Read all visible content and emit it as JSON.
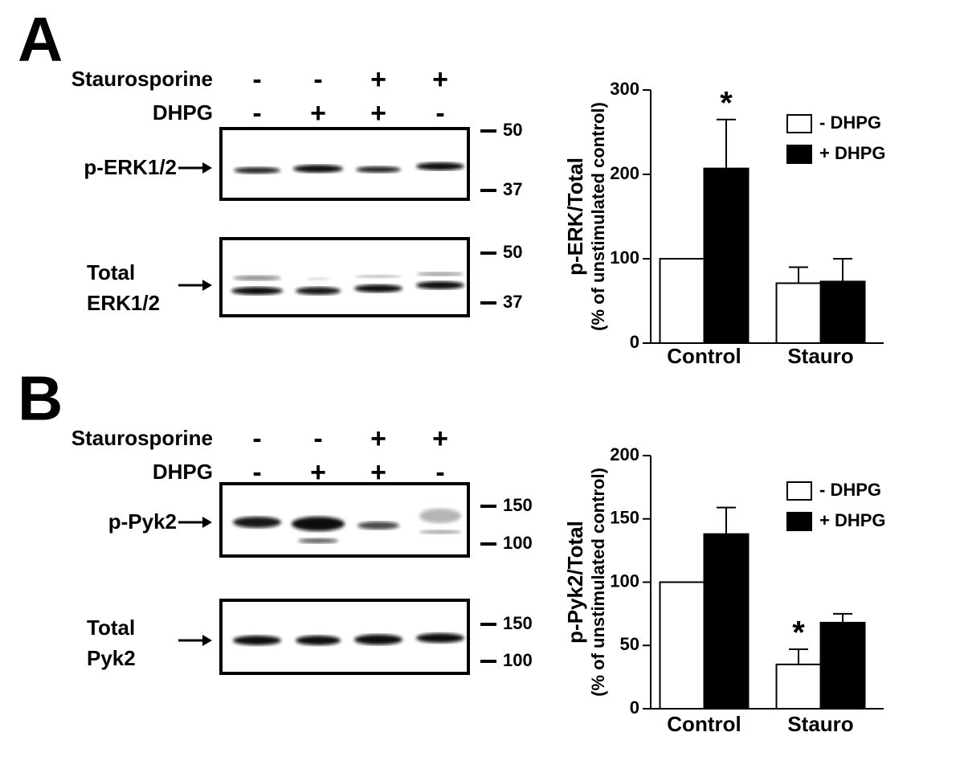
{
  "panels": [
    {
      "label": "A",
      "treatments": [
        {
          "name": "Staurosporine",
          "signs": [
            "-",
            "-",
            "+",
            "+"
          ]
        },
        {
          "name": "DHPG",
          "signs": [
            "-",
            "+",
            "+",
            "-"
          ]
        }
      ],
      "blots": [
        {
          "label": [
            "p-ERK1/2"
          ],
          "markers": [
            "50",
            "37"
          ]
        },
        {
          "label": [
            "Total",
            "ERK1/2"
          ],
          "markers": [
            "50",
            "37"
          ]
        }
      ]
    },
    {
      "label": "B",
      "treatments": [
        {
          "name": "Staurosporine",
          "signs": [
            "-",
            "-",
            "+",
            "+"
          ]
        },
        {
          "name": "DHPG",
          "signs": [
            "-",
            "+",
            "+",
            "-"
          ]
        }
      ],
      "blots": [
        {
          "label": [
            "p-Pyk2"
          ],
          "markers": [
            "150",
            "100"
          ]
        },
        {
          "label": [
            "Total",
            "Pyk2"
          ],
          "markers": [
            "150",
            "100"
          ]
        }
      ]
    }
  ],
  "chart_data": [
    {
      "type": "bar",
      "ylabel": [
        "p-ERK/Total",
        "(% of unstimulated control)"
      ],
      "categories": [
        "Control",
        "Stauro"
      ],
      "ylim": [
        0,
        300
      ],
      "yticks": [
        0,
        100,
        200,
        300
      ],
      "legend": "upper right",
      "series": [
        {
          "name": "- DHPG",
          "color": "#ffffff",
          "values": [
            100,
            71
          ],
          "errors": [
            null,
            19
          ],
          "annotations": [
            null,
            null
          ]
        },
        {
          "name": "+ DHPG",
          "color": "#000000",
          "values": [
            207,
            73
          ],
          "errors": [
            58,
            27
          ],
          "annotations": [
            "*",
            null
          ]
        }
      ]
    },
    {
      "type": "bar",
      "ylabel": [
        "p-Pyk2/Total",
        "(% of unstimulated control)"
      ],
      "categories": [
        "Control",
        "Stauro"
      ],
      "ylim": [
        0,
        200
      ],
      "yticks": [
        0,
        50,
        100,
        150,
        200
      ],
      "legend": "upper right",
      "series": [
        {
          "name": "- DHPG",
          "color": "#ffffff",
          "values": [
            100,
            35
          ],
          "errors": [
            null,
            12
          ],
          "annotations": [
            null,
            "*"
          ]
        },
        {
          "name": "+ DHPG",
          "color": "#000000",
          "values": [
            138,
            68
          ],
          "errors": [
            21,
            7
          ],
          "annotations": [
            null,
            null
          ]
        }
      ]
    }
  ]
}
